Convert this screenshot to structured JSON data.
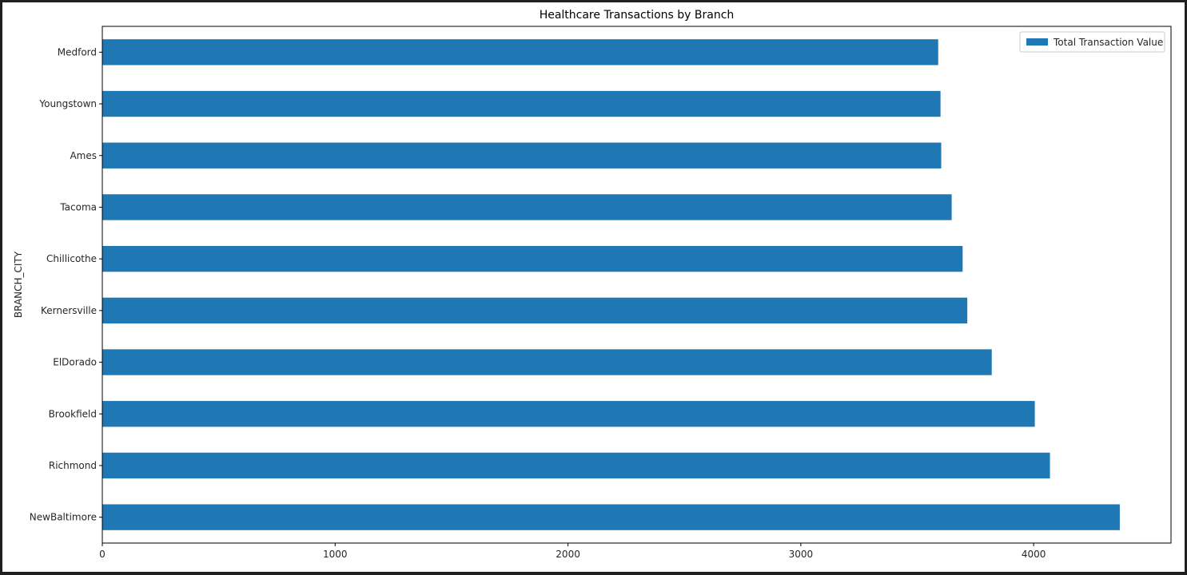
{
  "chart_data": {
    "type": "bar",
    "orientation": "horizontal",
    "title": "Healthcare Transactions by Branch",
    "xlabel": "",
    "ylabel": "BRANCH_CITY",
    "categories": [
      "Medford",
      "Youngstown",
      "Ames",
      "Tacoma",
      "Chillicothe",
      "Kernersville",
      "ElDorado",
      "Brookfield",
      "Richmond",
      "NewBaltimore"
    ],
    "series": [
      {
        "name": "Total Transaction Value",
        "color": "#1f77b4",
        "values": [
          3590,
          3600,
          3603,
          3648,
          3695,
          3715,
          3820,
          4005,
          4070,
          4370
        ]
      }
    ],
    "xlim": [
      0,
      4590
    ],
    "xticks": [
      0,
      1000,
      2000,
      3000,
      4000
    ],
    "grid": false,
    "legend_position": "top-right"
  }
}
